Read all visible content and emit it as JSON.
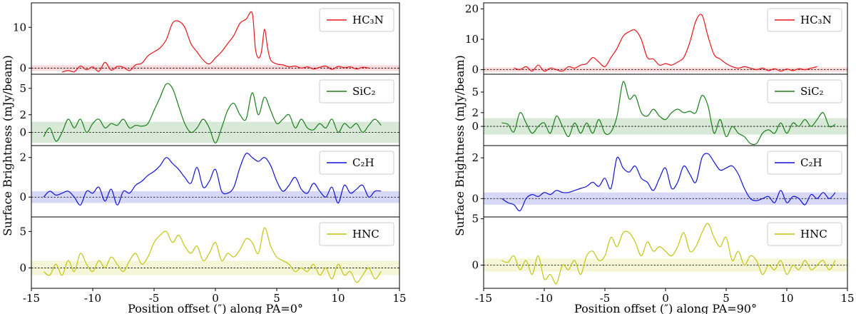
{
  "chart_data": [
    {
      "type": "line",
      "xlabel": "Position offset (″) along PA=0°",
      "ylabel": "Surface Brightness (mJy/beam)",
      "xlim": [
        -15,
        15
      ],
      "xticks": [
        -15,
        -10,
        -5,
        0,
        5,
        10,
        15
      ],
      "panels": [
        {
          "legend": "HC₃N",
          "legend_pos": "top-right",
          "color": "#e8151b",
          "ylim": [
            -1.5,
            16
          ],
          "yticks": [
            0,
            10
          ],
          "noise_band": [
            -0.7,
            0.7
          ],
          "x": [
            -12.5,
            -12,
            -11.5,
            -11,
            -10.5,
            -10,
            -9.5,
            -9,
            -8.5,
            -8,
            -7.5,
            -7,
            -6.5,
            -6,
            -5.5,
            -5,
            -4.5,
            -4,
            -3.5,
            -3,
            -2.5,
            -2,
            -1.5,
            -1,
            -0.5,
            0,
            0.5,
            1,
            1.5,
            2,
            2.5,
            3,
            3.25,
            3.5,
            3.75,
            4,
            4.25,
            4.5,
            5,
            5.5,
            6,
            6.5,
            7,
            7.5,
            8,
            8.5,
            9,
            9.5,
            10,
            10.5,
            11,
            11.5,
            12,
            12.5
          ],
          "y": [
            -1.0,
            -0.6,
            -0.9,
            0.5,
            -0.4,
            0.3,
            -0.8,
            1.4,
            -0.5,
            0.4,
            0.2,
            -0.6,
            0.8,
            1.2,
            3.0,
            4.0,
            5.0,
            7.0,
            11.0,
            11.5,
            10.0,
            6.0,
            4.0,
            2.0,
            1.0,
            2.5,
            4.0,
            6.0,
            8.0,
            11.0,
            12.0,
            13.5,
            5.0,
            2.5,
            4.0,
            9.5,
            5.0,
            2.0,
            1.0,
            0.8,
            0.3,
            0.5,
            0.0,
            0.3,
            -0.2,
            0.2,
            0.5,
            -0.3,
            0.4,
            0.1,
            0.3,
            -0.2,
            0.2,
            0.0
          ]
        },
        {
          "legend": "SiC₂",
          "legend_pos": "top-right",
          "color": "#1a7f1a",
          "ylim": [
            -1.5,
            6.6
          ],
          "yticks": [
            0,
            2,
            5
          ],
          "noise_band": [
            -1.2,
            1.2
          ],
          "x": [
            -14,
            -13.5,
            -13,
            -12.5,
            -12,
            -11.5,
            -11,
            -10.5,
            -10,
            -9.5,
            -9,
            -8.5,
            -8,
            -7.5,
            -7,
            -6.5,
            -6,
            -5.5,
            -5,
            -4.5,
            -4,
            -3.5,
            -3,
            -2.5,
            -2,
            -1.5,
            -1,
            -0.5,
            0,
            0.5,
            1,
            1.5,
            2,
            2.5,
            3,
            3.5,
            4,
            4.5,
            5,
            5.5,
            6,
            6.5,
            7,
            7.5,
            8,
            8.5,
            9,
            9.5,
            10,
            10.5,
            11,
            11.5,
            12,
            12.5,
            13,
            13.5
          ],
          "y": [
            -0.5,
            0.5,
            -1.0,
            0.0,
            1.5,
            0.5,
            1.5,
            0.0,
            1.0,
            1.5,
            0.5,
            1.0,
            0.8,
            1.5,
            0.5,
            0.8,
            0.7,
            1.0,
            2.5,
            4.0,
            5.5,
            5.0,
            3.0,
            1.0,
            0.0,
            0.5,
            1.5,
            0.5,
            -1.2,
            0.5,
            2.5,
            3.3,
            2.0,
            1.5,
            4.5,
            2.0,
            4.0,
            2.5,
            1.0,
            1.5,
            2.0,
            0.5,
            1.5,
            0.5,
            0.3,
            1.0,
            0.5,
            1.5,
            0.0,
            1.0,
            0.5,
            1.0,
            0.0,
            0.8,
            1.5,
            0.8
          ]
        },
        {
          "legend": "C₂H",
          "legend_pos": "top-right",
          "color": "#1212d6",
          "ylim": [
            -1.0,
            2.6
          ],
          "yticks": [
            0,
            2
          ],
          "noise_band": [
            -0.3,
            0.3
          ],
          "x": [
            -14,
            -13.5,
            -13,
            -12.5,
            -12,
            -11.5,
            -11,
            -10.5,
            -10,
            -9.5,
            -9,
            -8.5,
            -8,
            -7.5,
            -7,
            -6.5,
            -6,
            -5.5,
            -5,
            -4.5,
            -4,
            -3.5,
            -3,
            -2.5,
            -2,
            -1.5,
            -1,
            -0.5,
            0,
            0.5,
            1,
            1.5,
            2,
            2.5,
            3,
            3.5,
            4,
            4.5,
            5,
            5.5,
            6,
            6.5,
            7,
            7.5,
            8,
            8.5,
            9,
            9.5,
            10,
            10.5,
            11,
            11.5,
            12,
            12.5,
            13,
            13.5
          ],
          "y": [
            0.0,
            0.3,
            0.1,
            0.2,
            0.3,
            0.0,
            -0.4,
            0.3,
            0.2,
            0.5,
            -0.2,
            0.4,
            -0.4,
            0.3,
            0.2,
            0.6,
            0.8,
            1.1,
            1.3,
            1.6,
            2.0,
            1.7,
            1.4,
            1.0,
            0.7,
            1.5,
            0.5,
            0.8,
            1.4,
            0.3,
            0.2,
            0.5,
            1.5,
            2.2,
            2.0,
            1.8,
            2.0,
            1.6,
            0.8,
            0.3,
            0.6,
            1.0,
            0.4,
            0.2,
            0.7,
            0.3,
            0.0,
            0.5,
            -0.3,
            0.6,
            0.2,
            0.4,
            0.6,
            0.0,
            0.3,
            0.3
          ]
        },
        {
          "legend": "HNC",
          "legend_pos": "top-right",
          "color": "#c4c412",
          "ylim": [
            -2.8,
            7.0
          ],
          "yticks": [
            0,
            5
          ],
          "noise_band": [
            -1.0,
            1.0
          ],
          "x": [
            -14,
            -13.5,
            -13,
            -12.5,
            -12,
            -11.5,
            -11,
            -10.5,
            -10,
            -9.5,
            -9,
            -8.5,
            -8,
            -7.5,
            -7,
            -6.5,
            -6,
            -5.5,
            -5,
            -4.5,
            -4,
            -3.5,
            -3,
            -2.5,
            -2,
            -1.5,
            -1,
            -0.5,
            0,
            0.5,
            1,
            1.5,
            2,
            2.5,
            3,
            3.5,
            4,
            4.5,
            5,
            5.5,
            6,
            6.5,
            7,
            7.5,
            8,
            8.5,
            9,
            9.5,
            10,
            10.5,
            11,
            11.5,
            12,
            12.5,
            13,
            13.5
          ],
          "y": [
            -0.5,
            -1.0,
            0.5,
            -1.0,
            1.0,
            -0.5,
            2.0,
            0.5,
            -0.5,
            1.0,
            0.0,
            1.5,
            0.5,
            -0.5,
            1.0,
            2.0,
            0.5,
            1.5,
            3.5,
            4.5,
            5.0,
            3.5,
            4.5,
            3.0,
            2.0,
            3.0,
            1.0,
            2.0,
            3.5,
            1.0,
            2.0,
            1.5,
            2.5,
            4.0,
            3.5,
            2.0,
            5.5,
            3.0,
            1.5,
            1.0,
            0.5,
            -0.5,
            0.0,
            -0.5,
            0.5,
            -1.0,
            0.0,
            -1.5,
            0.5,
            -1.0,
            -0.5,
            -2.0,
            -1.0,
            0.0,
            -1.5,
            -0.5
          ]
        }
      ]
    },
    {
      "type": "line",
      "xlabel": "Position offset (″) along PA=90°",
      "ylabel": "Surface Brightness (mJy/beam)",
      "xlim": [
        -15,
        15
      ],
      "xticks": [
        -15,
        -10,
        -5,
        0,
        5,
        10,
        15
      ],
      "panels": [
        {
          "legend": "HC₃N",
          "legend_pos": "top-right",
          "color": "#e8151b",
          "ylim": [
            -1.5,
            22
          ],
          "yticks": [
            0,
            10,
            20
          ],
          "noise_band": [
            -0.7,
            0.7
          ],
          "x": [
            -12.5,
            -12,
            -11.5,
            -11,
            -10.5,
            -10,
            -9.5,
            -9,
            -8.5,
            -8,
            -7.5,
            -7,
            -6.5,
            -6,
            -5.5,
            -5,
            -4.5,
            -4,
            -3.5,
            -3,
            -2.5,
            -2,
            -1.5,
            -1,
            -0.5,
            0,
            0.5,
            1,
            1.5,
            2,
            2.5,
            3,
            3.5,
            4,
            4.5,
            5,
            5.5,
            6,
            6.5,
            7,
            7.5,
            8,
            8.5,
            9,
            9.5,
            10,
            10.5,
            11,
            11.5,
            12,
            12.5
          ],
          "y": [
            0.5,
            0.0,
            1.0,
            -0.5,
            1.5,
            -0.5,
            0.5,
            0.0,
            -0.5,
            1.0,
            0.5,
            1.5,
            2.0,
            4.0,
            2.5,
            1.0,
            4.0,
            7.0,
            11.0,
            12.5,
            13.0,
            10.0,
            4.0,
            3.5,
            1.5,
            2.0,
            1.5,
            2.5,
            4.0,
            9.0,
            16.0,
            18.0,
            11.0,
            5.0,
            3.5,
            2.0,
            1.0,
            0.5,
            1.0,
            0.5,
            0.0,
            0.5,
            -0.3,
            0.3,
            -0.5,
            0.2,
            -0.3,
            0.3,
            0.0,
            0.5,
            1.0
          ]
        },
        {
          "legend": "SiC₂",
          "legend_pos": "top-right",
          "color": "#1a7f1a",
          "ylim": [
            -2.8,
            7.6
          ],
          "yticks": [
            0,
            2,
            5
          ],
          "noise_band": [
            -1.2,
            1.2
          ],
          "x": [
            -13.5,
            -13,
            -12.5,
            -12,
            -11.5,
            -11,
            -10.5,
            -10,
            -9.5,
            -9,
            -8.5,
            -8,
            -7.5,
            -7,
            -6.5,
            -6,
            -5.5,
            -5,
            -4.5,
            -4,
            -3.5,
            -3,
            -2.5,
            -2,
            -1.5,
            -1,
            -0.5,
            0,
            0.5,
            1,
            1.5,
            2,
            2.5,
            3,
            3.5,
            4,
            4.5,
            5,
            5.5,
            6,
            6.5,
            7,
            7.5,
            8,
            8.5,
            9,
            9.5,
            10,
            10.5,
            11,
            11.5,
            12,
            12.5,
            13,
            13.5,
            14
          ],
          "y": [
            0.5,
            0.3,
            -0.8,
            2.0,
            0.5,
            -1.0,
            0.0,
            0.5,
            -1.0,
            1.5,
            0.0,
            -1.5,
            0.5,
            -1.0,
            0.5,
            -1.0,
            1.0,
            -1.0,
            -0.8,
            1.5,
            6.5,
            4.0,
            4.5,
            2.0,
            1.5,
            2.5,
            1.5,
            1.0,
            2.0,
            2.5,
            2.0,
            2.2,
            2.0,
            4.5,
            3.0,
            -1.0,
            1.0,
            -1.5,
            0.0,
            -1.0,
            -1.5,
            -2.5,
            -2.5,
            -1.0,
            -0.5,
            -1.0,
            0.5,
            -1.0,
            0.5,
            0.0,
            1.0,
            0.0,
            1.0,
            2.0,
            0.0,
            0.3
          ]
        },
        {
          "legend": "C₂H",
          "legend_pos": "top-right",
          "color": "#1212d6",
          "ylim": [
            -0.9,
            2.6
          ],
          "yticks": [
            0,
            2
          ],
          "noise_band": [
            -0.3,
            0.3
          ],
          "x": [
            -13.5,
            -13,
            -12.5,
            -12,
            -11.5,
            -11,
            -10.5,
            -10,
            -9.5,
            -9,
            -8.5,
            -8,
            -7.5,
            -7,
            -6.5,
            -6,
            -5.5,
            -5,
            -4.5,
            -4,
            -3.5,
            -3,
            -2.5,
            -2,
            -1.5,
            -1,
            -0.5,
            0,
            0.5,
            1,
            1.5,
            2,
            2.5,
            3,
            3.5,
            4,
            4.5,
            5,
            5.5,
            6,
            6.5,
            7,
            7.5,
            8,
            8.5,
            9,
            9.5,
            10,
            10.5,
            11,
            11.5,
            12,
            12.5,
            13,
            13.5,
            14
          ],
          "y": [
            0.0,
            -0.2,
            -0.3,
            -0.6,
            0.0,
            0.2,
            0.1,
            0.3,
            0.2,
            0.4,
            0.3,
            0.3,
            0.4,
            0.5,
            0.6,
            0.8,
            0.6,
            1.0,
            0.5,
            2.0,
            1.5,
            1.3,
            1.6,
            1.0,
            0.8,
            0.4,
            1.0,
            1.5,
            0.5,
            0.8,
            1.6,
            1.2,
            0.8,
            2.0,
            2.2,
            1.8,
            1.4,
            1.5,
            1.6,
            1.2,
            0.5,
            0.0,
            -0.1,
            0.0,
            0.1,
            -0.2,
            0.4,
            -0.2,
            0.1,
            0.0,
            -0.3,
            0.2,
            0.0,
            0.3,
            0.0,
            0.3
          ]
        },
        {
          "legend": "HNC",
          "legend_pos": "top-right",
          "color": "#c4c412",
          "ylim": [
            -2.5,
            5.2
          ],
          "yticks": [
            0,
            5
          ],
          "noise_band": [
            -0.7,
            0.7
          ],
          "x": [
            -13.5,
            -13,
            -12.5,
            -12,
            -11.5,
            -11,
            -10.5,
            -10,
            -9.5,
            -9,
            -8.5,
            -8,
            -7.5,
            -7,
            -6.5,
            -6,
            -5.5,
            -5,
            -4.5,
            -4,
            -3.5,
            -3,
            -2.5,
            -2,
            -1.5,
            -1,
            -0.5,
            0,
            0.5,
            1,
            1.5,
            2,
            2.5,
            3,
            3.5,
            4,
            4.5,
            5,
            5.5,
            6,
            6.5,
            7,
            7.5,
            8,
            8.5,
            9,
            9.5,
            10,
            10.5,
            11,
            11.5,
            12,
            12.5,
            13,
            13.5,
            14
          ],
          "y": [
            0.5,
            0.3,
            1.0,
            -0.5,
            0.5,
            -1.0,
            1.0,
            -1.5,
            -1.0,
            -2.0,
            0.0,
            -0.5,
            0.5,
            -1.0,
            1.0,
            1.5,
            0.5,
            1.0,
            3.0,
            2.0,
            3.5,
            3.5,
            2.5,
            1.0,
            2.5,
            1.5,
            2.0,
            1.5,
            1.0,
            2.0,
            3.5,
            1.5,
            2.0,
            3.5,
            4.5,
            3.0,
            2.0,
            3.0,
            0.5,
            1.5,
            0.0,
            1.0,
            0.5,
            -1.0,
            0.0,
            -0.5,
            0.5,
            -1.0,
            0.0,
            -0.5,
            0.5,
            -0.5,
            0.0,
            0.5,
            -0.5,
            0.5
          ]
        }
      ]
    }
  ]
}
